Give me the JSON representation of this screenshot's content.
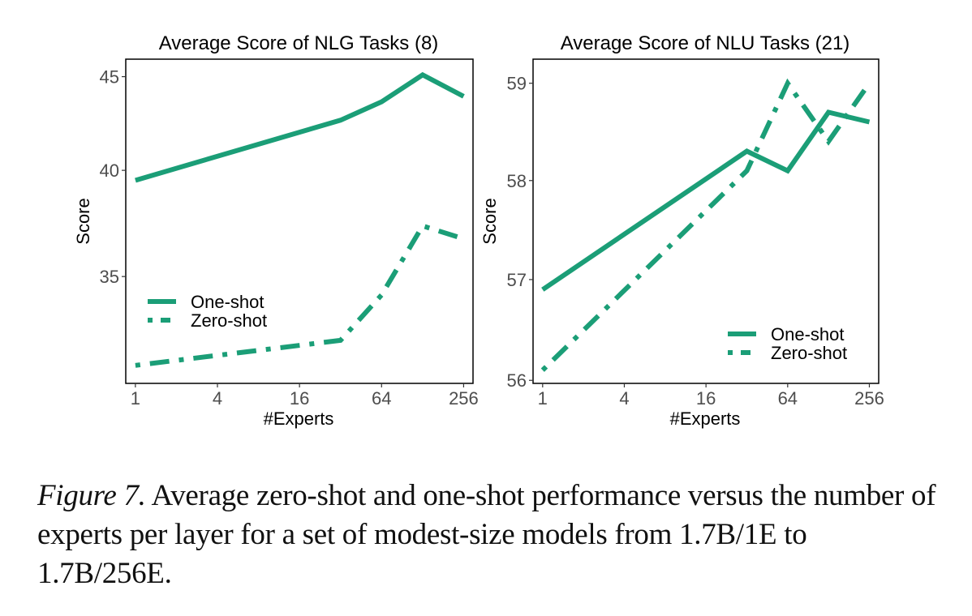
{
  "chart_data": [
    {
      "type": "line",
      "title": "Average Score of NLG Tasks (8)",
      "xlabel": "#Experts",
      "ylabel": "Score",
      "x_scale": "log2",
      "y_scale": "log",
      "x": [
        1,
        32,
        64,
        128,
        256
      ],
      "xticks": [
        1,
        4,
        16,
        64,
        256
      ],
      "xtick_labels": [
        "1",
        "4",
        "16",
        "64",
        "256"
      ],
      "yticks": [
        35,
        40,
        45
      ],
      "ytick_labels": [
        "35",
        "40",
        "45"
      ],
      "xlim": [
        0.85,
        300
      ],
      "ylim": [
        30.6,
        46.0
      ],
      "grid": false,
      "legend_position": "left",
      "series": [
        {
          "name": "One-shot",
          "style": "solid",
          "color": "#1b9e77",
          "values": [
            39.5,
            42.6,
            43.6,
            45.1,
            43.9
          ]
        },
        {
          "name": "Zero-shot",
          "style": "dotdash",
          "color": "#1b9e77",
          "values": [
            31.3,
            32.3,
            34.2,
            37.3,
            36.7
          ]
        }
      ]
    },
    {
      "type": "line",
      "title": "Average Score of NLU Tasks (21)",
      "xlabel": "#Experts",
      "ylabel": "Score",
      "x_scale": "log2",
      "y_scale": "log",
      "x": [
        1,
        32,
        64,
        128,
        256
      ],
      "xticks": [
        1,
        4,
        16,
        64,
        256
      ],
      "xtick_labels": [
        "1",
        "4",
        "16",
        "64",
        "256"
      ],
      "yticks": [
        56,
        57,
        58,
        59
      ],
      "ytick_labels": [
        "56",
        "57",
        "58",
        "59"
      ],
      "xlim": [
        0.85,
        300
      ],
      "ylim": [
        55.97,
        59.25
      ],
      "grid": false,
      "legend_position": "bottom-right",
      "series": [
        {
          "name": "One-shot",
          "style": "solid",
          "color": "#1b9e77",
          "values": [
            56.9,
            58.3,
            58.1,
            58.7,
            58.6
          ]
        },
        {
          "name": "Zero-shot",
          "style": "dotdash",
          "color": "#1b9e77",
          "values": [
            56.1,
            58.1,
            59.0,
            58.4,
            59.0
          ]
        }
      ]
    }
  ],
  "caption": {
    "label": "Figure 7.",
    "text": " Average zero-shot and one-shot performance versus the number of experts per layer for a set of modest-size models from 1.7B/1E to 1.7B/256E."
  }
}
